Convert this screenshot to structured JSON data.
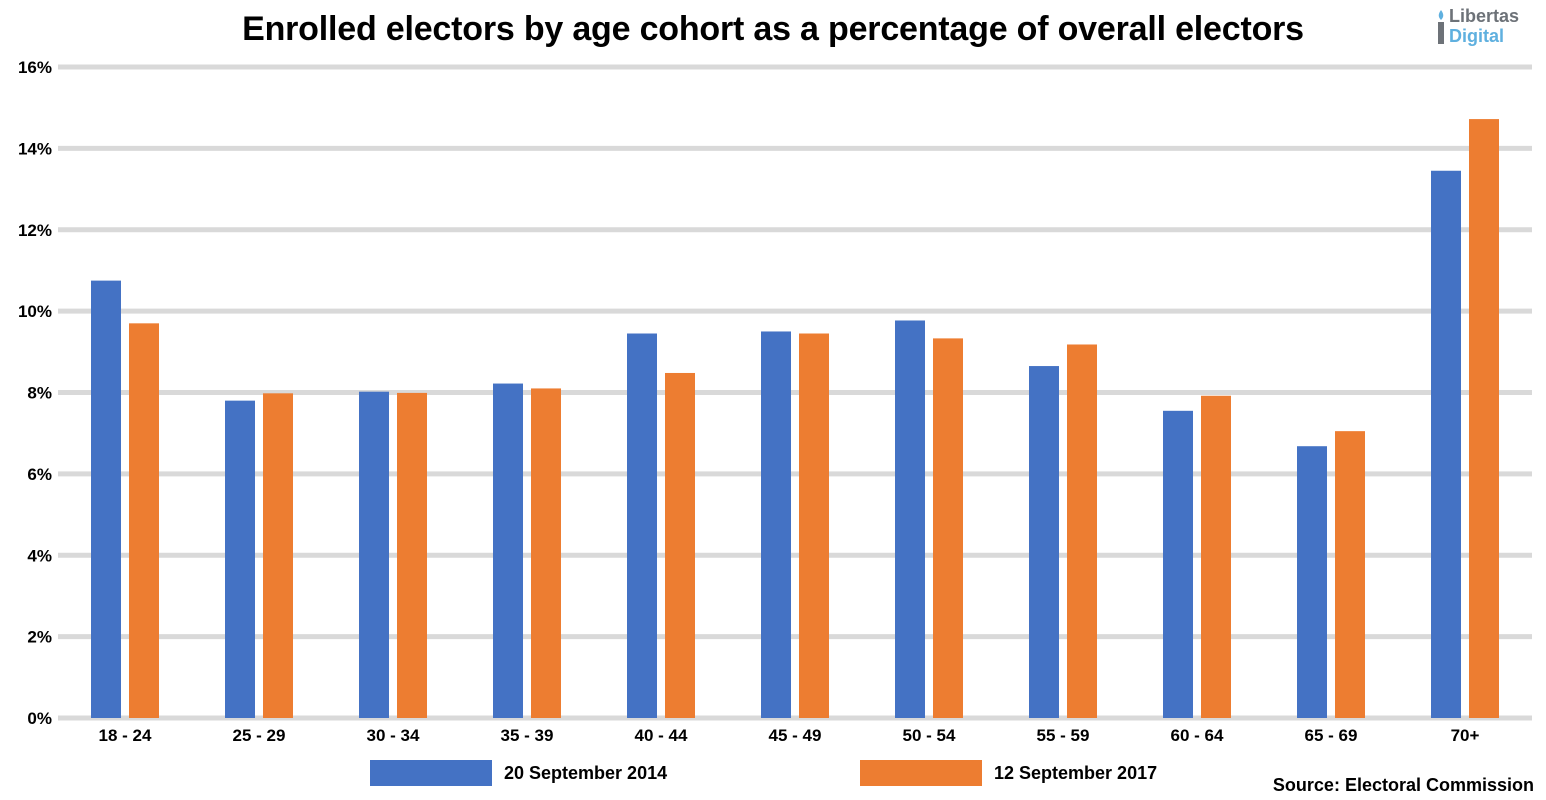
{
  "chart_data": {
    "type": "bar",
    "title": "Enrolled electors by age cohort as a percentage of overall electors",
    "categories": [
      "18 - 24",
      "25 - 29",
      "30 - 34",
      "35 - 39",
      "40 - 44",
      "45 - 49",
      "50 - 54",
      "55 - 59",
      "60 - 64",
      "65 - 69",
      "70+"
    ],
    "series": [
      {
        "name": "20 September 2014",
        "color": "#4472c4",
        "values": [
          10.75,
          7.8,
          8.02,
          8.22,
          9.45,
          9.5,
          9.77,
          8.65,
          7.55,
          6.68,
          13.45
        ]
      },
      {
        "name": "12 September 2017",
        "color": "#ed7d31",
        "values": [
          9.7,
          7.98,
          7.99,
          8.1,
          8.48,
          9.45,
          9.33,
          9.18,
          7.92,
          7.05,
          14.72
        ]
      }
    ],
    "ylim": [
      0,
      16
    ],
    "yticks": [
      0,
      2,
      4,
      6,
      8,
      10,
      12,
      14,
      16
    ],
    "ytick_labels": [
      "0%",
      "2%",
      "4%",
      "6%",
      "8%",
      "10%",
      "12%",
      "14%",
      "16%"
    ],
    "gridlines": true,
    "legend_position": "bottom",
    "xlabel": "",
    "ylabel": ""
  },
  "logo": {
    "line1": "Libertas",
    "line2": "Digital"
  },
  "source": "Source: Electoral Commission"
}
